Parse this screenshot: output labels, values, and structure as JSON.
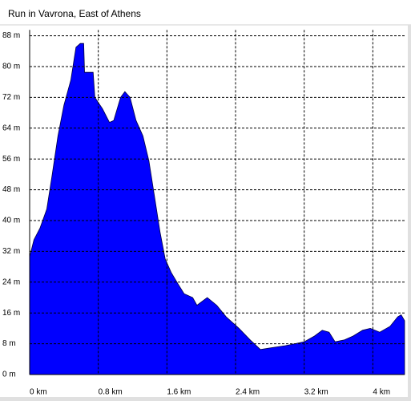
{
  "chart_data": {
    "type": "area",
    "title": "Run in Vavrona, East of Athens",
    "x": [
      0,
      0.05,
      0.12,
      0.2,
      0.26,
      0.33,
      0.4,
      0.48,
      0.54,
      0.59,
      0.63,
      0.64,
      0.74,
      0.76,
      0.85,
      0.93,
      0.98,
      1.06,
      1.11,
      1.17,
      1.24,
      1.32,
      1.39,
      1.45,
      1.52,
      1.58,
      1.65,
      1.73,
      1.8,
      1.9,
      1.95,
      2.07,
      2.18,
      2.29,
      2.44,
      2.57,
      2.69,
      2.83,
      2.98,
      3.09,
      3.2,
      3.32,
      3.41,
      3.49,
      3.56,
      3.67,
      3.77,
      3.88,
      3.97,
      4.08,
      4.2,
      4.29,
      4.33,
      4.37
    ],
    "values": [
      30.6,
      35,
      38,
      43,
      51.5,
      62,
      70,
      76.5,
      85,
      86,
      86,
      78.5,
      78.5,
      72,
      69,
      65.5,
      66,
      72,
      73.5,
      72,
      66,
      62,
      55.5,
      47,
      37,
      30,
      26.5,
      23.5,
      21,
      20,
      18,
      20,
      18,
      15,
      12,
      9,
      6.5,
      7,
      7.5,
      8,
      8.5,
      10,
      11.5,
      11,
      8.5,
      9,
      10,
      11.5,
      12,
      11,
      12.5,
      15,
      15.5,
      14
    ],
    "color": "#0000ff",
    "xlim": [
      0,
      4.37
    ],
    "xticks": [
      {
        "value": 0,
        "label": "0 km"
      },
      {
        "value": 0.8,
        "label": "0.8 km"
      },
      {
        "value": 1.6,
        "label": "1.6 km"
      },
      {
        "value": 2.4,
        "label": "2.4 km"
      },
      {
        "value": 3.2,
        "label": "3.2 km"
      },
      {
        "value": 4,
        "label": "4 km"
      }
    ],
    "ylim": [
      0,
      89.5
    ],
    "yticks": [
      {
        "value": 0,
        "label": "0 m"
      },
      {
        "value": 8,
        "label": "8 m"
      },
      {
        "value": 16,
        "label": "16 m"
      },
      {
        "value": 24,
        "label": "24 m"
      },
      {
        "value": 32,
        "label": "32 m"
      },
      {
        "value": 40,
        "label": "40 m"
      },
      {
        "value": 48,
        "label": "48 m"
      },
      {
        "value": 56,
        "label": "56 m"
      },
      {
        "value": 64,
        "label": "64 m"
      },
      {
        "value": 72,
        "label": "72 m"
      },
      {
        "value": 80,
        "label": "80 m"
      },
      {
        "value": 88,
        "label": "88 m"
      }
    ],
    "grid": true
  }
}
